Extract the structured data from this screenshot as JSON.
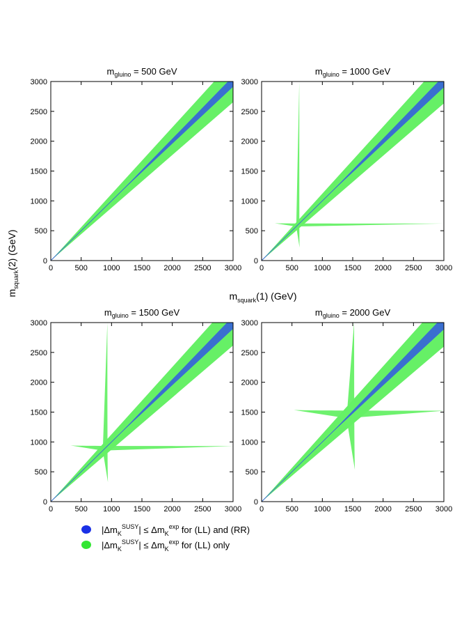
{
  "chart_data": [
    {
      "type": "heatmap",
      "title": "m_gluino = 500 GeV",
      "title_prefix": "m",
      "title_sub": "gluino",
      "title_rest": " = 500 GeV",
      "gluino_mass": 500,
      "xlim": [
        0,
        3000
      ],
      "ylim": [
        0,
        3000
      ],
      "xticks": [
        0,
        500,
        1000,
        1500,
        2000,
        2500,
        3000
      ],
      "yticks": [
        0,
        500,
        1000,
        1500,
        2000,
        2500,
        3000
      ]
    },
    {
      "type": "heatmap",
      "title": "m_gluino = 1000 GeV",
      "title_prefix": "m",
      "title_sub": "gluino",
      "title_rest": " = 1000 GeV",
      "gluino_mass": 1000,
      "xlim": [
        0,
        3000
      ],
      "ylim": [
        0,
        3000
      ],
      "xticks": [
        0,
        500,
        1000,
        1500,
        2000,
        2500,
        3000
      ],
      "yticks": [
        0,
        500,
        1000,
        1500,
        2000,
        2500,
        3000
      ]
    },
    {
      "type": "heatmap",
      "title": "m_gluino = 1500 GeV",
      "title_prefix": "m",
      "title_sub": "gluino",
      "title_rest": " = 1500 GeV",
      "gluino_mass": 1500,
      "xlim": [
        0,
        3000
      ],
      "ylim": [
        0,
        3000
      ],
      "xticks": [
        0,
        500,
        1000,
        1500,
        2000,
        2500,
        3000
      ],
      "yticks": [
        0,
        500,
        1000,
        1500,
        2000,
        2500,
        3000
      ]
    },
    {
      "type": "heatmap",
      "title": "m_gluino = 2000 GeV",
      "title_prefix": "m",
      "title_sub": "gluino",
      "title_rest": " = 2000 GeV",
      "gluino_mass": 2000,
      "xlim": [
        0,
        3000
      ],
      "ylim": [
        0,
        3000
      ],
      "xticks": [
        0,
        500,
        1000,
        1500,
        2000,
        2500,
        3000
      ],
      "yticks": [
        0,
        500,
        1000,
        1500,
        2000,
        2500,
        3000
      ]
    }
  ],
  "axes": {
    "xlabel": "m_squark(1) (GeV)",
    "xlabel_prefix": "m",
    "xlabel_sub": "squark",
    "xlabel_rest": "(1) (GeV)",
    "ylabel": "m_squark(2) (GeV)",
    "ylabel_prefix": "m",
    "ylabel_sub": "squark",
    "ylabel_rest": "(2) (GeV)"
  },
  "legend": [
    {
      "color": "#1a30e6",
      "label": "|Δm_K^SUSY| ≤ Δm_K^exp for (LL) and (RR)",
      "p1": "|Δm",
      "sub1": "K",
      "sup1": "SUSY",
      "p2": "| ≤  Δm",
      "sub2": "K",
      "sup2": "exp",
      "p3": " for (LL) and (RR)"
    },
    {
      "color": "#33e633",
      "label": "|Δm_K^SUSY| ≤ Δm_K^exp for (LL) only",
      "p1": "|Δm",
      "sub1": "K",
      "sup1": "SUSY",
      "p2": "| ≤ Δm",
      "sub2": "K",
      "sup2": "exp",
      "p3": " for (LL) only"
    }
  ],
  "colors": {
    "green_region": "#66f066",
    "blue_region": "#3a6fd0",
    "diagonal": "#3a6fd0"
  }
}
